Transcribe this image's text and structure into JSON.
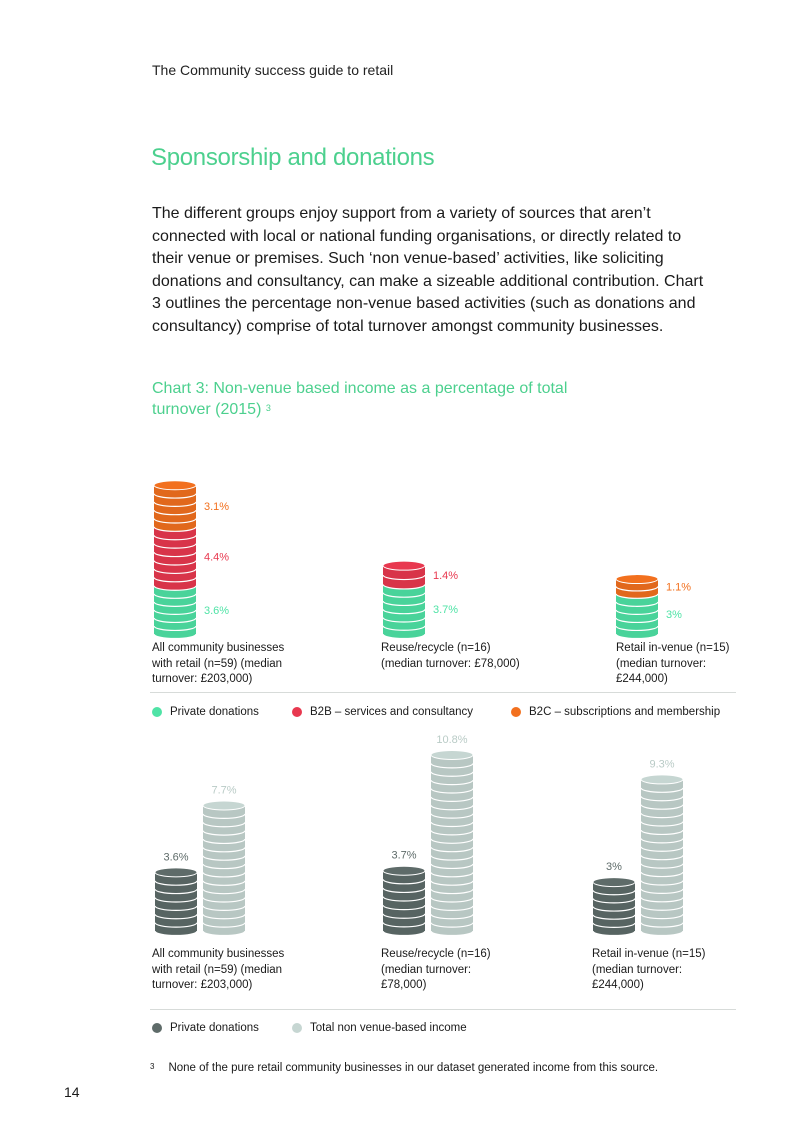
{
  "header": {
    "running_head": "The Community success guide to retail"
  },
  "section": {
    "title": "Sponsorship and donations",
    "intro": "The different groups enjoy support from a variety of sources that aren’t connected with local or national funding organisations, or directly related to their venue or premises. Such ‘non venue-based’ activities, like soliciting donations and consultancy, can make a sizeable additional contribution. Chart 3 outlines the percentage non-venue based activities (such as donations and consultancy) comprise of total turnover amongst community businesses."
  },
  "chart_title": "Chart 3: Non-venue based income as a percentage of total turnover (2015)",
  "chart_title_ref": "3",
  "colors": {
    "private": "#4fe3a6",
    "b2b": "#e8384f",
    "b2c": "#f2701e",
    "private_dark": "#5e6b69",
    "total": "#c6d6d2"
  },
  "chart_data": [
    {
      "type": "bar",
      "stacked": true,
      "style": "stacked coins",
      "categories": [
        "All community businesses with retail (n=59) (median turnover: £203,000)",
        "Reuse/recycle (n=16) (median turnover: £78,000)",
        "Retail in-venue (n=15) (median turnover: £244,000)"
      ],
      "series": [
        {
          "name": "Private donations",
          "values": [
            3.6,
            3.7,
            3.0
          ],
          "labels": [
            "3.6%",
            "3.7%",
            "3%"
          ]
        },
        {
          "name": "B2B – services and consultancy",
          "values": [
            4.4,
            1.4,
            null
          ],
          "labels": [
            "4.4%",
            "1.4%",
            ""
          ]
        },
        {
          "name": "B2C – subscriptions and membership",
          "values": [
            3.1,
            null,
            1.1
          ],
          "labels": [
            "3.1%",
            "",
            "1.1%"
          ]
        }
      ],
      "unit": "%",
      "legend": "bottom"
    },
    {
      "type": "bar",
      "style": "stacked coins",
      "categories": [
        "All community businesses with retail (n=59) (median turnover: £203,000)",
        "Reuse/recycle (n=16) (median turnover: £78,000)",
        "Retail in-venue (n=15) (median turnover: £244,000)"
      ],
      "series": [
        {
          "name": "Private donations",
          "values": [
            3.6,
            3.7,
            3.0
          ],
          "labels": [
            "3.6%",
            "3.7%",
            "3%"
          ]
        },
        {
          "name": "Total non venue-based income",
          "values": [
            7.7,
            10.8,
            9.3
          ],
          "labels": [
            "7.7%",
            "10.8%",
            "9.3%"
          ]
        }
      ],
      "unit": "%",
      "legend": "bottom"
    }
  ],
  "chart1": {
    "group_labels": [
      "All community businesses\nwith retail (n=59) (median\nturnover: £203,000)",
      "Reuse/recycle (n=16)\n(median turnover: £78,000)",
      "Retail in-venue (n=15)\n(median turnover:\n£244,000)"
    ],
    "legend": [
      "Private donations",
      "B2B – services and consultancy",
      "B2C – subscriptions and membership"
    ]
  },
  "chart2": {
    "group_labels": [
      "All community businesses\nwith retail (n=59) (median\nturnover: £203,000)",
      "Reuse/recycle (n=16)\n(median turnover:\n£78,000)",
      "Retail in-venue (n=15)\n(median turnover:\n£244,000)"
    ],
    "legend": [
      "Private donations",
      "Total non venue-based income"
    ]
  },
  "footnote": {
    "mark": "3",
    "text": "None of the pure retail community businesses in our dataset generated income from this source."
  },
  "page_number": "14"
}
